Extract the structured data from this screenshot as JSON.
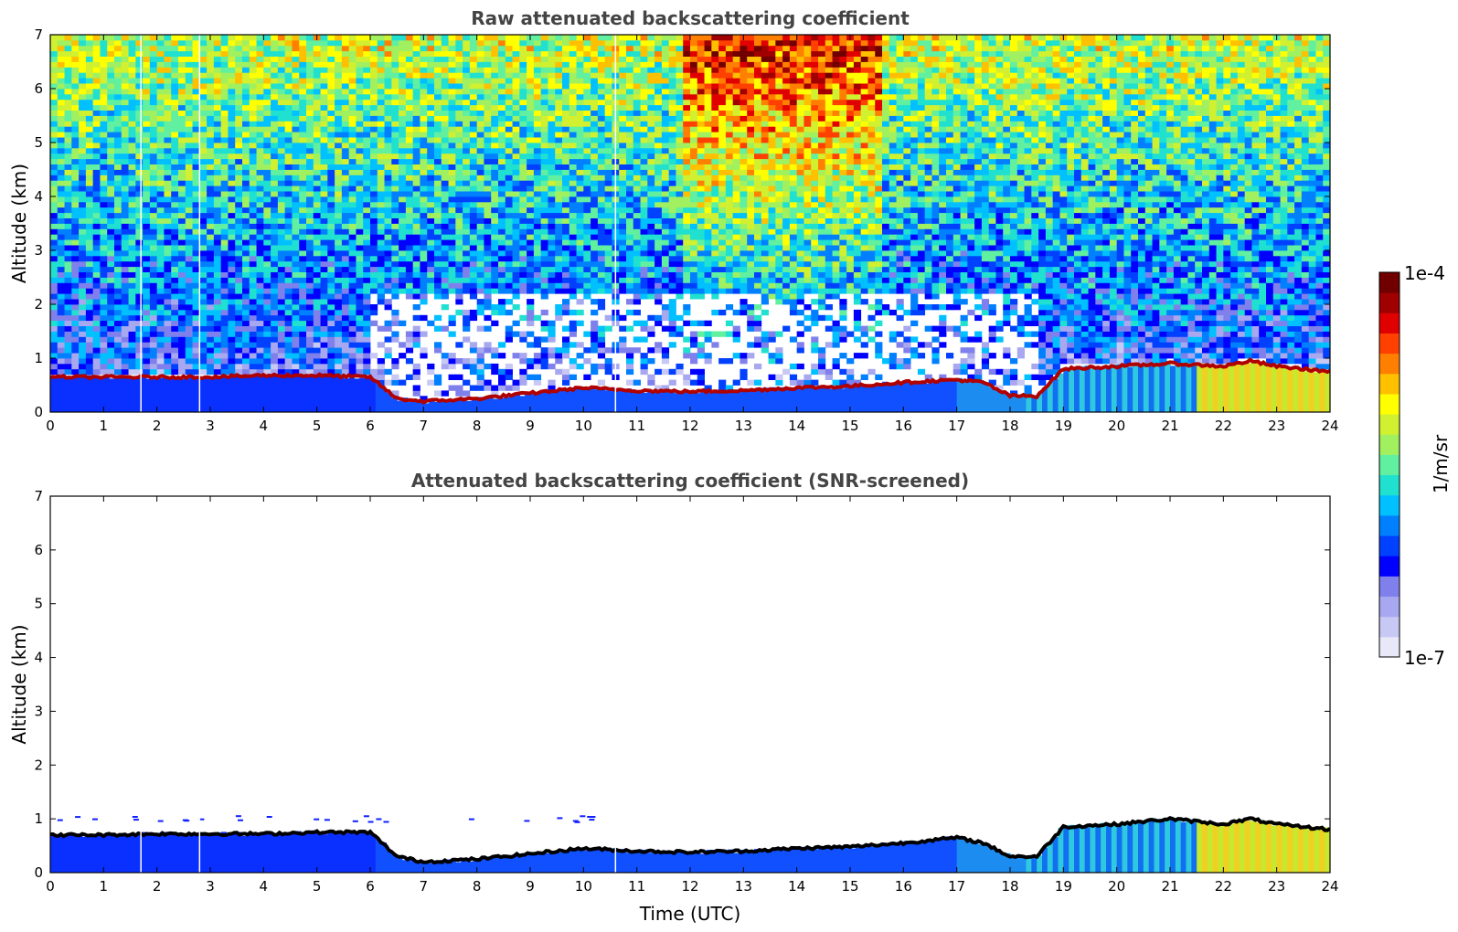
{
  "chart_data": [
    {
      "type": "heatmap",
      "title": "Raw attenuated backscattering coefficient",
      "xlabel": "",
      "ylabel": "Altitude (km)",
      "xlim": [
        0,
        24
      ],
      "ylim": [
        0,
        7
      ],
      "xticks": [
        "0",
        "1",
        "2",
        "3",
        "4",
        "5",
        "6",
        "7",
        "8",
        "9",
        "10",
        "11",
        "12",
        "13",
        "14",
        "15",
        "16",
        "17",
        "18",
        "19",
        "20",
        "21",
        "22",
        "23",
        "24"
      ],
      "yticks": [
        "0",
        "1",
        "2",
        "3",
        "4",
        "5",
        "6",
        "7"
      ],
      "boundary_layer_top_km": [
        [
          0,
          0.65
        ],
        [
          1,
          0.65
        ],
        [
          2,
          0.65
        ],
        [
          3,
          0.65
        ],
        [
          4,
          0.68
        ],
        [
          5,
          0.68
        ],
        [
          6,
          0.65
        ],
        [
          6.5,
          0.25
        ],
        [
          7,
          0.2
        ],
        [
          8,
          0.25
        ],
        [
          9,
          0.35
        ],
        [
          10,
          0.45
        ],
        [
          11,
          0.4
        ],
        [
          12,
          0.38
        ],
        [
          13,
          0.4
        ],
        [
          14,
          0.45
        ],
        [
          15,
          0.48
        ],
        [
          16,
          0.55
        ],
        [
          17,
          0.6
        ],
        [
          17.5,
          0.55
        ],
        [
          18,
          0.3
        ],
        [
          18.5,
          0.3
        ],
        [
          19,
          0.8
        ],
        [
          20,
          0.85
        ],
        [
          21,
          0.9
        ],
        [
          22,
          0.85
        ],
        [
          22.5,
          0.95
        ],
        [
          23,
          0.85
        ],
        [
          24,
          0.75
        ]
      ],
      "data_gaps_utc": [
        1.7,
        2.8,
        10.6
      ],
      "noise": "increases with altitude; strongest 12-15.5 UTC above 4 km",
      "colormap": "jet"
    },
    {
      "type": "heatmap",
      "title": "Attenuated backscattering coefficient (SNR-screened)",
      "xlabel": "Time (UTC)",
      "ylabel": "Altitude (km)",
      "xlim": [
        0,
        24
      ],
      "ylim": [
        0,
        7
      ],
      "xticks": [
        "0",
        "1",
        "2",
        "3",
        "4",
        "5",
        "6",
        "7",
        "8",
        "9",
        "10",
        "11",
        "12",
        "13",
        "14",
        "15",
        "16",
        "17",
        "18",
        "19",
        "20",
        "21",
        "22",
        "23",
        "24"
      ],
      "yticks": [
        "0",
        "1",
        "2",
        "3",
        "4",
        "5",
        "6",
        "7"
      ],
      "boundary_layer_top_km": [
        [
          0,
          0.7
        ],
        [
          1,
          0.7
        ],
        [
          2,
          0.72
        ],
        [
          3,
          0.72
        ],
        [
          4,
          0.72
        ],
        [
          5,
          0.75
        ],
        [
          6,
          0.75
        ],
        [
          6.5,
          0.3
        ],
        [
          7,
          0.2
        ],
        [
          8,
          0.25
        ],
        [
          9,
          0.35
        ],
        [
          10,
          0.45
        ],
        [
          11,
          0.4
        ],
        [
          12,
          0.38
        ],
        [
          13,
          0.4
        ],
        [
          14,
          0.45
        ],
        [
          15,
          0.48
        ],
        [
          16,
          0.55
        ],
        [
          17,
          0.65
        ],
        [
          17.5,
          0.55
        ],
        [
          18,
          0.3
        ],
        [
          18.5,
          0.3
        ],
        [
          19,
          0.85
        ],
        [
          20,
          0.9
        ],
        [
          21,
          1.0
        ],
        [
          22,
          0.9
        ],
        [
          22.5,
          1.0
        ],
        [
          23,
          0.9
        ],
        [
          24,
          0.8
        ]
      ],
      "data_gaps_utc": [
        1.7,
        2.8,
        10.6
      ],
      "screening": "signal above ~1 km removed",
      "colormap": "jet"
    }
  ],
  "colorbar": {
    "max_label": "1e-4",
    "min_label": "1e-7",
    "unit_label": "1/m/sr",
    "colors": [
      "#e8e8f8",
      "#c8c8f4",
      "#a8a8f0",
      "#8080ec",
      "#0000ff",
      "#0040ff",
      "#0080ff",
      "#00c0ff",
      "#20e0d0",
      "#60f0a0",
      "#a0f060",
      "#d0f030",
      "#ffff00",
      "#ffc000",
      "#ff8000",
      "#ff4000",
      "#e00000",
      "#a00000",
      "#700000"
    ]
  }
}
